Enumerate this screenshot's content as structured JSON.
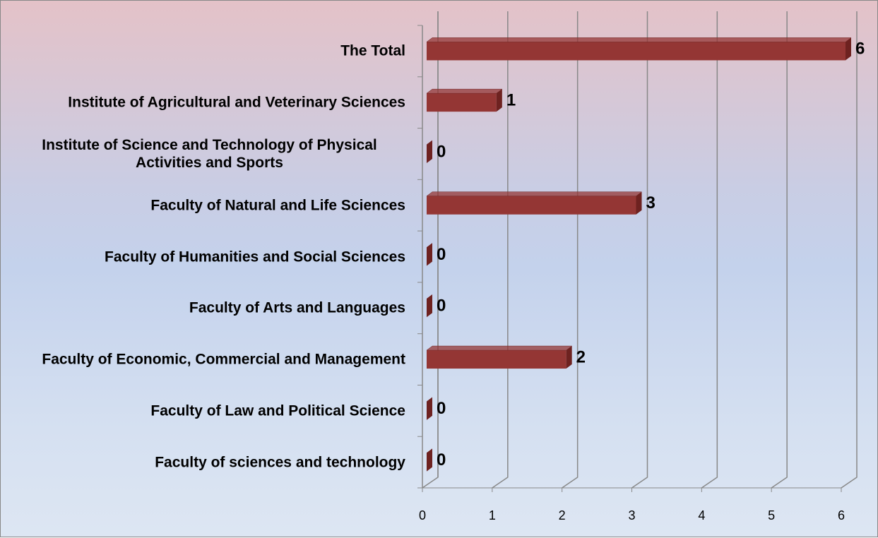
{
  "chart_data": {
    "type": "bar3d_horizontal",
    "categories": [
      "The Total",
      "Institute of Agricultural and Veterinary Sciences",
      "Institute of Science and Technology of Physical Activities and Sports",
      "Faculty of Natural and Life Sciences",
      "Faculty of Humanities and Social Sciences",
      "Faculty of Arts and Languages",
      "Faculty of Economic, Commercial and Management",
      "Faculty of Law and Political Science",
      "Faculty of sciences and technology"
    ],
    "values": [
      6,
      1,
      0,
      3,
      0,
      0,
      2,
      0,
      0
    ],
    "color": "#943634",
    "xlim": [
      0,
      6
    ],
    "xticks": [
      0,
      1,
      2,
      3,
      4,
      5,
      6
    ],
    "grid": true
  }
}
